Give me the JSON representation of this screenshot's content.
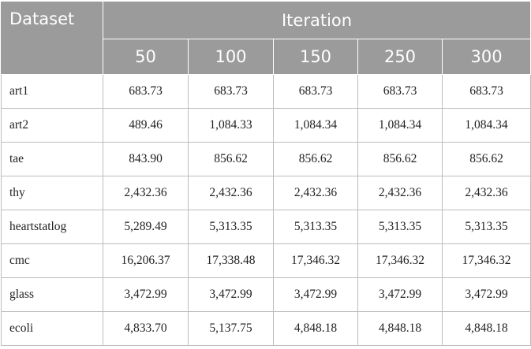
{
  "table": {
    "header": {
      "first": "Dataset",
      "group": "Iteration",
      "columns": [
        "50",
        "100",
        "150",
        "250",
        "300"
      ]
    },
    "rows": [
      [
        "art1",
        "683.73",
        "683.73",
        "683.73",
        "683.73",
        "683.73"
      ],
      [
        "art2",
        "489.46",
        "1,084.33",
        "1,084.34",
        "1,084.34",
        "1,084.34"
      ],
      [
        "tae",
        "843.90",
        "856.62",
        "856.62",
        "856.62",
        "856.62"
      ],
      [
        "thy",
        "2,432.36",
        "2,432.36",
        "2,432.36",
        "2,432.36",
        "2,432.36"
      ],
      [
        "heartstatlog",
        "5,289.49",
        "5,313.35",
        "5,313.35",
        "5,313.35",
        "5,313.35"
      ],
      [
        "cmc",
        "16,206.37",
        "17,338.48",
        "17,346.32",
        "17,346.32",
        "17,346.32"
      ],
      [
        "glass",
        "3,472.99",
        "3,472.99",
        "3,472.99",
        "3,472.99",
        "3,472.99"
      ],
      [
        "ecoli",
        "4,833.70",
        "5,137.75",
        "4,848.18",
        "4,848.18",
        "4,848.18"
      ]
    ]
  }
}
